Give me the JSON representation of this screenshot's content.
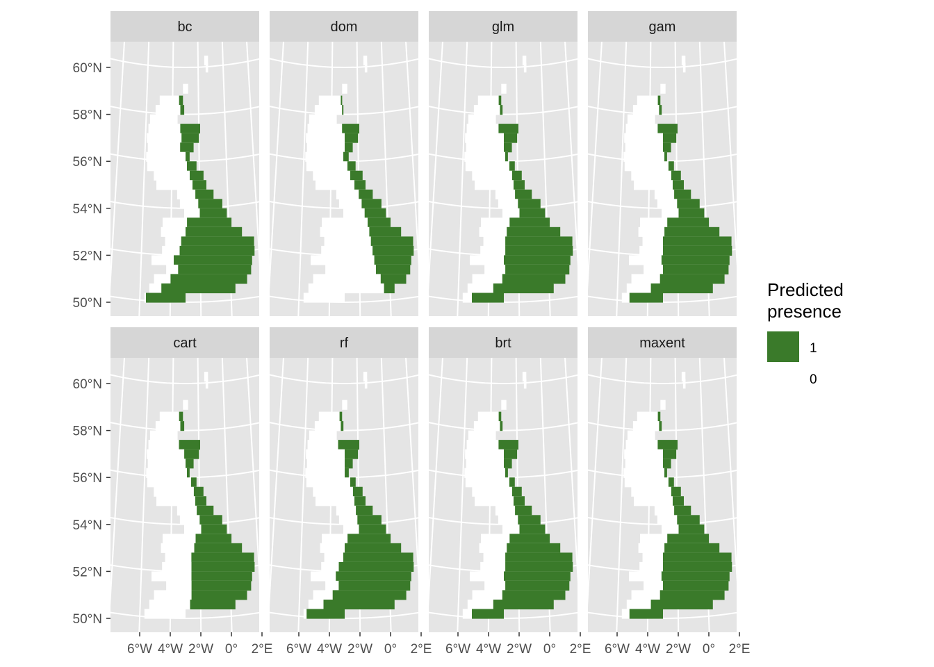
{
  "chart_data": {
    "type": "heatmap",
    "title": "",
    "xlabel": "",
    "ylabel": "",
    "panels": [
      {
        "name": "bc"
      },
      {
        "name": "dom"
      },
      {
        "name": "glm"
      },
      {
        "name": "gam"
      },
      {
        "name": "cart"
      },
      {
        "name": "rf"
      },
      {
        "name": "brt"
      },
      {
        "name": "maxent"
      }
    ],
    "y_ticks": [
      {
        "value": 60,
        "label": "60°N"
      },
      {
        "value": 58,
        "label": "58°N"
      },
      {
        "value": 56,
        "label": "56°N"
      },
      {
        "value": 54,
        "label": "54°N"
      },
      {
        "value": 52,
        "label": "52°N"
      },
      {
        "value": 50,
        "label": "50°N"
      }
    ],
    "x_ticks": [
      {
        "value": -6,
        "label": "6°W"
      },
      {
        "value": -4,
        "label": "4°W"
      },
      {
        "value": -2,
        "label": "2°W"
      },
      {
        "value": 0,
        "label": "0°"
      },
      {
        "value": 2,
        "label": "2°E"
      }
    ],
    "ylim": [
      49.5,
      61.3
    ],
    "xlim": [
      -7.8,
      2.2
    ],
    "grid": true,
    "legend": {
      "title_line1": "Predicted",
      "title_line2": "presence",
      "position": "right",
      "entries": [
        {
          "label": "1",
          "color": "#3a7a2a"
        },
        {
          "label": "0",
          "color": "#ffffff"
        }
      ]
    },
    "colors": {
      "presence": "#3a7a2a",
      "absence": "#ffffff",
      "panel_background": "#e5e5e5",
      "strip_background": "#d6d6d6",
      "grid": "#ffffff"
    }
  }
}
